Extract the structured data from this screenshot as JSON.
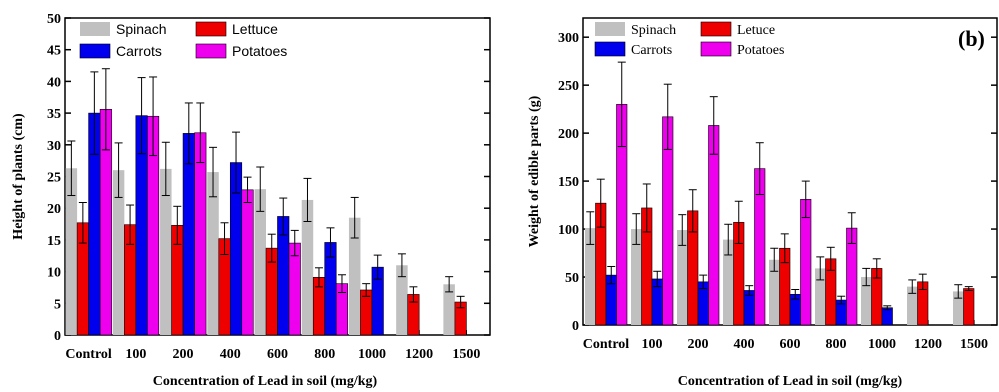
{
  "chart_data": [
    {
      "type": "bar",
      "panel_label": "",
      "xlabel": "Concentration of Lead in soil (mg/kg)",
      "ylabel": "Height of plants (cm)",
      "ylim": [
        0,
        50
      ],
      "yticks": [
        0,
        5,
        10,
        15,
        20,
        25,
        30,
        35,
        40,
        45,
        50
      ],
      "categories": [
        "Control",
        "100",
        "200",
        "400",
        "600",
        "800",
        "1000",
        "1200",
        "1500"
      ],
      "legend": {
        "placement": "top-left",
        "columns": 2
      },
      "series": [
        {
          "name": "Spinach",
          "color": "#c0c0c0",
          "values": [
            26.3,
            26.0,
            26.2,
            25.7,
            23.0,
            21.3,
            18.5,
            11.0,
            8.0
          ],
          "errors": [
            4.3,
            4.3,
            4.2,
            3.9,
            3.5,
            3.4,
            3.2,
            1.8,
            1.2
          ]
        },
        {
          "name": "Lettuce",
          "color": "#ee0000",
          "values": [
            17.7,
            17.4,
            17.3,
            15.2,
            13.7,
            9.1,
            7.1,
            6.4,
            5.2
          ],
          "errors": [
            3.2,
            3.1,
            3.0,
            2.5,
            2.2,
            1.5,
            1.0,
            1.2,
            0.9
          ]
        },
        {
          "name": "Carrots",
          "color": "#0000ee",
          "values": [
            35.0,
            34.6,
            31.8,
            27.2,
            18.7,
            14.6,
            10.7,
            null,
            null
          ],
          "errors": [
            6.5,
            6.0,
            4.8,
            4.8,
            2.9,
            2.3,
            1.9,
            null,
            null
          ]
        },
        {
          "name": "Potatoes",
          "color": "#ee00ee",
          "values": [
            35.6,
            34.5,
            31.9,
            22.9,
            14.5,
            8.1,
            null,
            null,
            null
          ],
          "errors": [
            6.4,
            6.2,
            4.7,
            2.0,
            2.0,
            1.4,
            null,
            null,
            null
          ]
        }
      ]
    },
    {
      "type": "bar",
      "panel_label": "(b)",
      "xlabel": "Concentration of Lead in soil (mg/kg)",
      "ylabel": "Weight of edible parts (g)",
      "ylim": [
        0,
        320
      ],
      "yticks": [
        0,
        50,
        100,
        150,
        200,
        250,
        300
      ],
      "categories": [
        "Control",
        "100",
        "200",
        "400",
        "600",
        "800",
        "1000",
        "1200",
        "1500"
      ],
      "legend": {
        "placement": "top-left",
        "columns": 2
      },
      "series": [
        {
          "name": "Spinach",
          "color": "#c0c0c0",
          "values": [
            101,
            100,
            99,
            89,
            68,
            59,
            50,
            40,
            35
          ],
          "errors": [
            17,
            16,
            16,
            16,
            12,
            12,
            9,
            7,
            7
          ]
        },
        {
          "name": "Letuce",
          "color": "#ee0000",
          "values": [
            127,
            122,
            119,
            107,
            80,
            69,
            59,
            45,
            38
          ],
          "errors": [
            25,
            25,
            22,
            22,
            15,
            12,
            10,
            8,
            2
          ]
        },
        {
          "name": "Carrots",
          "color": "#0000ee",
          "values": [
            52,
            48,
            45,
            36,
            32,
            26,
            18,
            null,
            null
          ],
          "errors": [
            9,
            8,
            7,
            5,
            5,
            4,
            2,
            null,
            null
          ]
        },
        {
          "name": "Potatoes",
          "color": "#ee00ee",
          "values": [
            230,
            217,
            208,
            163,
            131,
            101,
            null,
            null,
            null
          ],
          "errors": [
            44,
            34,
            30,
            27,
            19,
            16,
            null,
            null,
            null
          ]
        }
      ]
    }
  ]
}
